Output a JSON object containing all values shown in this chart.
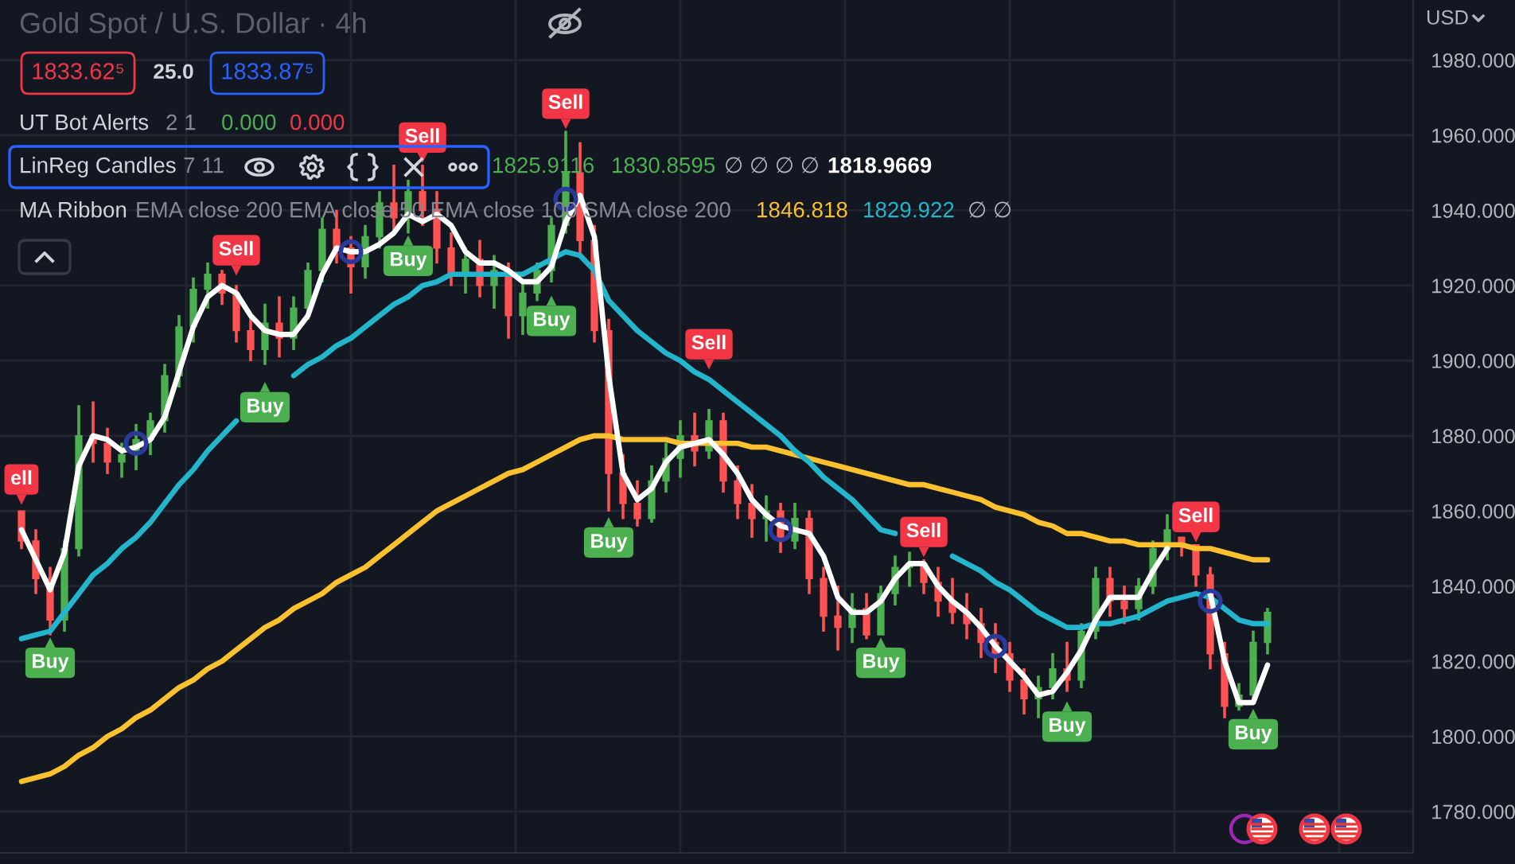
{
  "chart_data": {
    "type": "candlestick",
    "title": "Gold Spot / U.S. Dollar · 4h",
    "ylabel": "USD",
    "categories": [
      null,
      null,
      null,
      null,
      null,
      null,
      null,
      null,
      null,
      null,
      null,
      null,
      null,
      null,
      null,
      null,
      null,
      null,
      null,
      null,
      null,
      null,
      null,
      null,
      null,
      null,
      null,
      null,
      null,
      null,
      null,
      null,
      null,
      null,
      null,
      null,
      null,
      null,
      null,
      null,
      null,
      null,
      null,
      null,
      null,
      null,
      null,
      null,
      null,
      null,
      null,
      null,
      null,
      null,
      null,
      null,
      null,
      null,
      null,
      null,
      null,
      null,
      null,
      null,
      null,
      null,
      null,
      null,
      null,
      null,
      null,
      null,
      null,
      null,
      null,
      null,
      null,
      null,
      null,
      null,
      null,
      null,
      null,
      null,
      null,
      null,
      null,
      null
    ],
    "ohlc": [
      [
        1860,
        1860,
        1850,
        1852
      ],
      [
        1852,
        1855,
        1838,
        1842
      ],
      [
        1842,
        1845,
        1827,
        1831
      ],
      [
        1831,
        1852,
        1828,
        1850
      ],
      [
        1850,
        1888,
        1848,
        1880
      ],
      [
        1880,
        1889,
        1873,
        1878
      ],
      [
        1878,
        1882,
        1870,
        1873
      ],
      [
        1873,
        1878,
        1869,
        1875
      ],
      [
        1875,
        1883,
        1871,
        1879
      ],
      [
        1879,
        1886,
        1875,
        1884
      ],
      [
        1884,
        1899,
        1881,
        1896
      ],
      [
        1896,
        1912,
        1893,
        1909
      ],
      [
        1909,
        1922,
        1905,
        1919
      ],
      [
        1919,
        1926,
        1914,
        1923
      ],
      [
        1923,
        1924,
        1915,
        1918
      ],
      [
        1918,
        1920,
        1905,
        1908
      ],
      [
        1908,
        1912,
        1900,
        1903
      ],
      [
        1903,
        1915,
        1899,
        1910
      ],
      [
        1910,
        1917,
        1901,
        1906
      ],
      [
        1906,
        1917,
        1903,
        1914
      ],
      [
        1914,
        1926,
        1911,
        1924
      ],
      [
        1924,
        1938,
        1921,
        1935
      ],
      [
        1935,
        1940,
        1926,
        1930
      ],
      [
        1930,
        1933,
        1918,
        1925
      ],
      [
        1925,
        1936,
        1922,
        1933
      ],
      [
        1933,
        1945,
        1930,
        1942
      ],
      [
        1942,
        1952,
        1935,
        1938
      ],
      [
        1938,
        1948,
        1934,
        1945
      ],
      [
        1945,
        1952,
        1936,
        1940
      ],
      [
        1940,
        1945,
        1926,
        1930
      ],
      [
        1930,
        1934,
        1920,
        1923
      ],
      [
        1923,
        1930,
        1918,
        1927
      ],
      [
        1927,
        1932,
        1917,
        1920
      ],
      [
        1920,
        1928,
        1914,
        1924
      ],
      [
        1924,
        1926,
        1906,
        1912
      ],
      [
        1912,
        1921,
        1907,
        1918
      ],
      [
        1918,
        1926,
        1916,
        1924
      ],
      [
        1924,
        1938,
        1921,
        1936
      ],
      [
        1936,
        1961,
        1934,
        1950
      ],
      [
        1950,
        1958,
        1928,
        1932
      ],
      [
        1932,
        1936,
        1905,
        1908
      ],
      [
        1908,
        1911,
        1860,
        1870
      ],
      [
        1870,
        1875,
        1858,
        1862
      ],
      [
        1862,
        1868,
        1856,
        1858
      ],
      [
        1858,
        1872,
        1857,
        1868
      ],
      [
        1868,
        1878,
        1865,
        1874
      ],
      [
        1874,
        1884,
        1869,
        1880
      ],
      [
        1880,
        1886,
        1872,
        1876
      ],
      [
        1876,
        1887,
        1874,
        1884
      ],
      [
        1884,
        1886,
        1865,
        1868
      ],
      [
        1868,
        1872,
        1858,
        1862
      ],
      [
        1862,
        1867,
        1853,
        1858
      ],
      [
        1858,
        1864,
        1852,
        1860
      ],
      [
        1860,
        1862,
        1849,
        1852
      ],
      [
        1852,
        1862,
        1850,
        1858
      ],
      [
        1858,
        1860,
        1838,
        1842
      ],
      [
        1842,
        1845,
        1828,
        1832
      ],
      [
        1832,
        1840,
        1823,
        1829
      ],
      [
        1829,
        1838,
        1825,
        1834
      ],
      [
        1834,
        1838,
        1826,
        1827
      ],
      [
        1827,
        1840,
        1827,
        1838
      ],
      [
        1838,
        1848,
        1835,
        1845
      ],
      [
        1845,
        1849,
        1840,
        1846
      ],
      [
        1846,
        1847,
        1838,
        1841
      ],
      [
        1841,
        1845,
        1832,
        1836
      ],
      [
        1836,
        1842,
        1830,
        1833
      ],
      [
        1833,
        1838,
        1826,
        1830
      ],
      [
        1830,
        1834,
        1821,
        1825
      ],
      [
        1825,
        1830,
        1817,
        1822
      ],
      [
        1822,
        1825,
        1812,
        1815
      ],
      [
        1815,
        1818,
        1806,
        1810
      ],
      [
        1810,
        1816,
        1805,
        1813
      ],
      [
        1813,
        1822,
        1810,
        1818
      ],
      [
        1818,
        1825,
        1812,
        1815
      ],
      [
        1815,
        1830,
        1813,
        1828
      ],
      [
        1828,
        1845,
        1826,
        1842
      ],
      [
        1842,
        1845,
        1832,
        1836
      ],
      [
        1836,
        1840,
        1830,
        1834
      ],
      [
        1834,
        1842,
        1831,
        1840
      ],
      [
        1840,
        1852,
        1838,
        1850
      ],
      [
        1850,
        1859,
        1847,
        1855
      ],
      [
        1853,
        1853,
        1848,
        1851
      ],
      [
        1851,
        1851,
        1840,
        1843
      ],
      [
        1843,
        1845,
        1818,
        1822
      ],
      [
        1822,
        1825,
        1805,
        1808
      ],
      [
        1808,
        1814,
        1807,
        1811
      ],
      [
        1811,
        1828,
        1809,
        1825
      ],
      [
        1825,
        1834,
        1822,
        1833
      ]
    ],
    "colors": [
      "#ff5252",
      "#ff5252",
      "#ff5252",
      "#4caf50",
      "#4caf50",
      "#ff5252",
      "#ff5252",
      "#4caf50",
      "#4caf50",
      "#4caf50",
      "#4caf50",
      "#4caf50",
      "#4caf50",
      "#4caf50",
      "#ff5252",
      "#ff5252",
      "#ff5252",
      "#4caf50",
      "#ff5252",
      "#4caf50",
      "#4caf50",
      "#4caf50",
      "#ff5252",
      "#ff5252",
      "#4caf50",
      "#4caf50",
      "#ff5252",
      "#4caf50",
      "#ff5252",
      "#ff5252",
      "#ff5252",
      "#4caf50",
      "#ff5252",
      "#4caf50",
      "#ff5252",
      "#4caf50",
      "#4caf50",
      "#4caf50",
      "#4caf50",
      "#ff5252",
      "#ff5252",
      "#ff5252",
      "#ff5252",
      "#ff5252",
      "#4caf50",
      "#4caf50",
      "#4caf50",
      "#ff5252",
      "#4caf50",
      "#ff5252",
      "#ff5252",
      "#ff5252",
      "#4caf50",
      "#ff5252",
      "#4caf50",
      "#ff5252",
      "#ff5252",
      "#ff5252",
      "#4caf50",
      "#ff5252",
      "#4caf50",
      "#4caf50",
      "#4caf50",
      "#ff5252",
      "#ff5252",
      "#ff5252",
      "#ff5252",
      "#ff5252",
      "#ff5252",
      "#ff5252",
      "#ff5252",
      "#4caf50",
      "#4caf50",
      "#ff5252",
      "#4caf50",
      "#4caf50",
      "#ff5252",
      "#ff5252",
      "#4caf50",
      "#4caf50",
      "#4caf50",
      "#ff5252",
      "#ff5252",
      "#ff5252",
      "#ff5252",
      "#4caf50",
      "#4caf50",
      "#4caf50"
    ],
    "series": [
      {
        "type": "line",
        "color": "#fbc02d",
        "values": [
          1788,
          1789,
          1790,
          1792,
          1795,
          1797,
          1800,
          1802,
          1805,
          1807,
          1810,
          1813,
          1815,
          1818,
          1820,
          1823,
          1826,
          1829,
          1831,
          1834,
          1836,
          1838,
          1841,
          1843,
          1845,
          1848,
          1851,
          1854,
          1857,
          1860,
          1862,
          1864,
          1866,
          1868,
          1870,
          1871,
          1873,
          1875,
          1877,
          1879,
          1880,
          1880,
          1879,
          1879,
          1879,
          1879,
          1878,
          1878,
          1878,
          1878,
          1878,
          1877,
          1877,
          1876,
          1875,
          1874,
          1873,
          1872,
          1871,
          1870,
          1869,
          1868,
          1867,
          1867,
          1866,
          1865,
          1864,
          1863,
          1861,
          1860,
          1859,
          1857,
          1856,
          1854,
          1854,
          1853,
          1852,
          1852,
          1851,
          1851,
          1851,
          1851,
          1850,
          1850,
          1849,
          1848,
          1847,
          1847
        ]
      },
      {
        "type": "line",
        "color": "#22b5cc",
        "values": [
          1826,
          1827,
          1828,
          1833,
          1838,
          1843,
          1846,
          1850,
          1853,
          1857,
          1862,
          1867,
          1871,
          1876,
          1880,
          1884,
          null,
          null,
          null,
          1896,
          1899,
          1901,
          1904,
          1906,
          1909,
          1912,
          1915,
          1917,
          1920,
          1921,
          1923,
          1923,
          1923,
          1923,
          1923,
          1923,
          1925,
          1927,
          1929,
          1928,
          1924,
          1916,
          1912,
          1908,
          1905,
          1902,
          1900,
          1897,
          1895,
          1892,
          1889,
          1886,
          1883,
          1880,
          1876,
          1873,
          1869,
          1866,
          1863,
          1859,
          1855,
          1854,
          null,
          null,
          null,
          1848,
          1846,
          1844,
          1841,
          1839,
          1836,
          1833,
          1831,
          1829,
          1829,
          1830,
          1830,
          1831,
          1832,
          1834,
          1836,
          1837,
          1838,
          1837,
          1834,
          1831,
          1830,
          1830
        ]
      },
      {
        "type": "line",
        "color": "#ffffff",
        "values": [
          1855,
          1847,
          1839,
          1849,
          1872,
          1880,
          1879,
          1876,
          1877,
          1879,
          1885,
          1897,
          1909,
          1917,
          1920,
          1918,
          1912,
          1908,
          1907,
          1907,
          1912,
          1923,
          1930,
          1929,
          1929,
          1931,
          1934,
          1939,
          1937,
          1939,
          1936,
          1929,
          1926,
          1926,
          1924,
          1921,
          1921,
          1925,
          1937,
          1944,
          1933,
          1896,
          1870,
          1863,
          1866,
          1873,
          1877,
          1878,
          1879,
          1875,
          1870,
          1863,
          1859,
          1856,
          1855,
          1854,
          1848,
          1837,
          1833,
          1833,
          1836,
          1842,
          1846,
          1846,
          1840,
          1836,
          1833,
          1829,
          1824,
          1820,
          1816,
          1811,
          1812,
          1817,
          1823,
          1831,
          1837,
          1837,
          1837,
          1844,
          1850,
          null,
          null,
          1838,
          1820,
          1809,
          1809,
          1819
        ]
      },
      {
        "type": "scatter",
        "marker": "circle",
        "color": "#2b3a9a",
        "values": [
          null,
          null,
          null,
          null,
          null,
          null,
          null,
          null,
          1878,
          null,
          null,
          null,
          null,
          null,
          null,
          null,
          null,
          null,
          null,
          null,
          null,
          null,
          null,
          1929,
          null,
          null,
          null,
          null,
          null,
          null,
          null,
          null,
          null,
          null,
          null,
          null,
          null,
          null,
          1943,
          null,
          null,
          null,
          null,
          null,
          null,
          null,
          null,
          null,
          null,
          null,
          null,
          null,
          null,
          1855,
          null,
          null,
          null,
          null,
          null,
          null,
          null,
          null,
          null,
          null,
          null,
          null,
          null,
          null,
          1824,
          null,
          null,
          null,
          null,
          null,
          null,
          null,
          null,
          null,
          null,
          null,
          null,
          null,
          null,
          1836,
          null,
          null,
          null,
          null
        ]
      },
      {
        "type": "scatter",
        "marker": "triangle",
        "values": [
          1863,
          null,
          1825,
          null,
          null,
          null,
          null,
          null,
          null,
          null,
          null,
          null,
          null,
          null,
          null,
          1924,
          null,
          1893,
          null,
          null,
          null,
          null,
          null,
          null,
          null,
          null,
          null,
          1932,
          1954,
          null,
          null,
          null,
          null,
          null,
          null,
          null,
          null,
          1916,
          1963,
          null,
          null,
          1857,
          null,
          null,
          null,
          null,
          null,
          null,
          1899,
          null,
          null,
          null,
          null,
          null,
          null,
          null,
          null,
          null,
          null,
          null,
          1825,
          null,
          null,
          1849,
          null,
          null,
          null,
          null,
          null,
          null,
          null,
          null,
          null,
          1808,
          null,
          null,
          null,
          null,
          null,
          null,
          null,
          null,
          1853,
          null,
          null,
          null,
          1806,
          null
        ],
        "value_labels": [
          "ell",
          null,
          "Buy",
          null,
          null,
          null,
          null,
          null,
          null,
          null,
          null,
          null,
          null,
          null,
          null,
          "Sell",
          null,
          "Buy",
          null,
          null,
          null,
          null,
          null,
          null,
          null,
          null,
          null,
          "Buy",
          "Sell",
          null,
          null,
          null,
          null,
          null,
          null,
          null,
          null,
          "Buy",
          "Sell",
          null,
          null,
          "Buy",
          null,
          null,
          null,
          null,
          null,
          null,
          "Sell",
          null,
          null,
          null,
          null,
          null,
          null,
          null,
          null,
          null,
          null,
          null,
          "Buy",
          null,
          null,
          "Sell",
          null,
          null,
          null,
          null,
          null,
          null,
          null,
          null,
          null,
          "Buy",
          null,
          null,
          null,
          null,
          null,
          null,
          null,
          null,
          "Sell",
          null,
          null,
          null,
          "Buy",
          null
        ],
        "colors": [
          "#f23645",
          null,
          "#4caf50",
          null,
          null,
          null,
          null,
          null,
          null,
          null,
          null,
          null,
          null,
          null,
          null,
          "#f23645",
          null,
          "#4caf50",
          null,
          null,
          null,
          null,
          null,
          null,
          null,
          null,
          null,
          "#4caf50",
          "#f23645",
          null,
          null,
          null,
          null,
          null,
          null,
          null,
          null,
          "#4caf50",
          "#f23645",
          null,
          null,
          "#4caf50",
          null,
          null,
          null,
          null,
          null,
          null,
          "#f23645",
          null,
          null,
          null,
          null,
          null,
          null,
          null,
          null,
          null,
          null,
          null,
          "#4caf50",
          null,
          null,
          "#f23645",
          null,
          null,
          null,
          null,
          null,
          null,
          null,
          null,
          null,
          "#4caf50",
          null,
          null,
          null,
          null,
          null,
          null,
          null,
          null,
          "#f23645",
          null,
          null,
          null,
          "#4caf50",
          null
        ]
      }
    ],
    "ylim": [
      1769,
      1996
    ],
    "yticks": [
      {
        "value": 1780,
        "label": "1780.000"
      },
      {
        "value": 1800,
        "label": "1800.000"
      },
      {
        "value": 1820,
        "label": "1820.000"
      },
      {
        "value": 1840,
        "label": "1840.000"
      },
      {
        "value": 1860,
        "label": "1860.000"
      },
      {
        "value": 1880,
        "label": "1880.000"
      },
      {
        "value": 1900,
        "label": "1900.000"
      },
      {
        "value": 1920,
        "label": "1920.000"
      },
      {
        "value": 1940,
        "label": "1940.000"
      },
      {
        "value": 1960,
        "label": "1960.000"
      },
      {
        "value": 1980,
        "label": "1980.000"
      }
    ],
    "tick_labels": "y",
    "grid": true,
    "annotations": [
      "1833.62⁵",
      "25.0",
      "1833.87⁵",
      "UT Bot Alerts",
      "2 1",
      "0.000",
      "0.000",
      "LinReg Candles",
      "7 11",
      "1825.9116",
      "1830.8595",
      "∅ ∅ ∅ ∅",
      "1818.9669",
      "MA Ribbon",
      "EMA close 200 EMA close 50 EMA close 100 SMA close 200",
      "1846.818",
      "1829.922",
      "∅ ∅"
    ]
  }
}
